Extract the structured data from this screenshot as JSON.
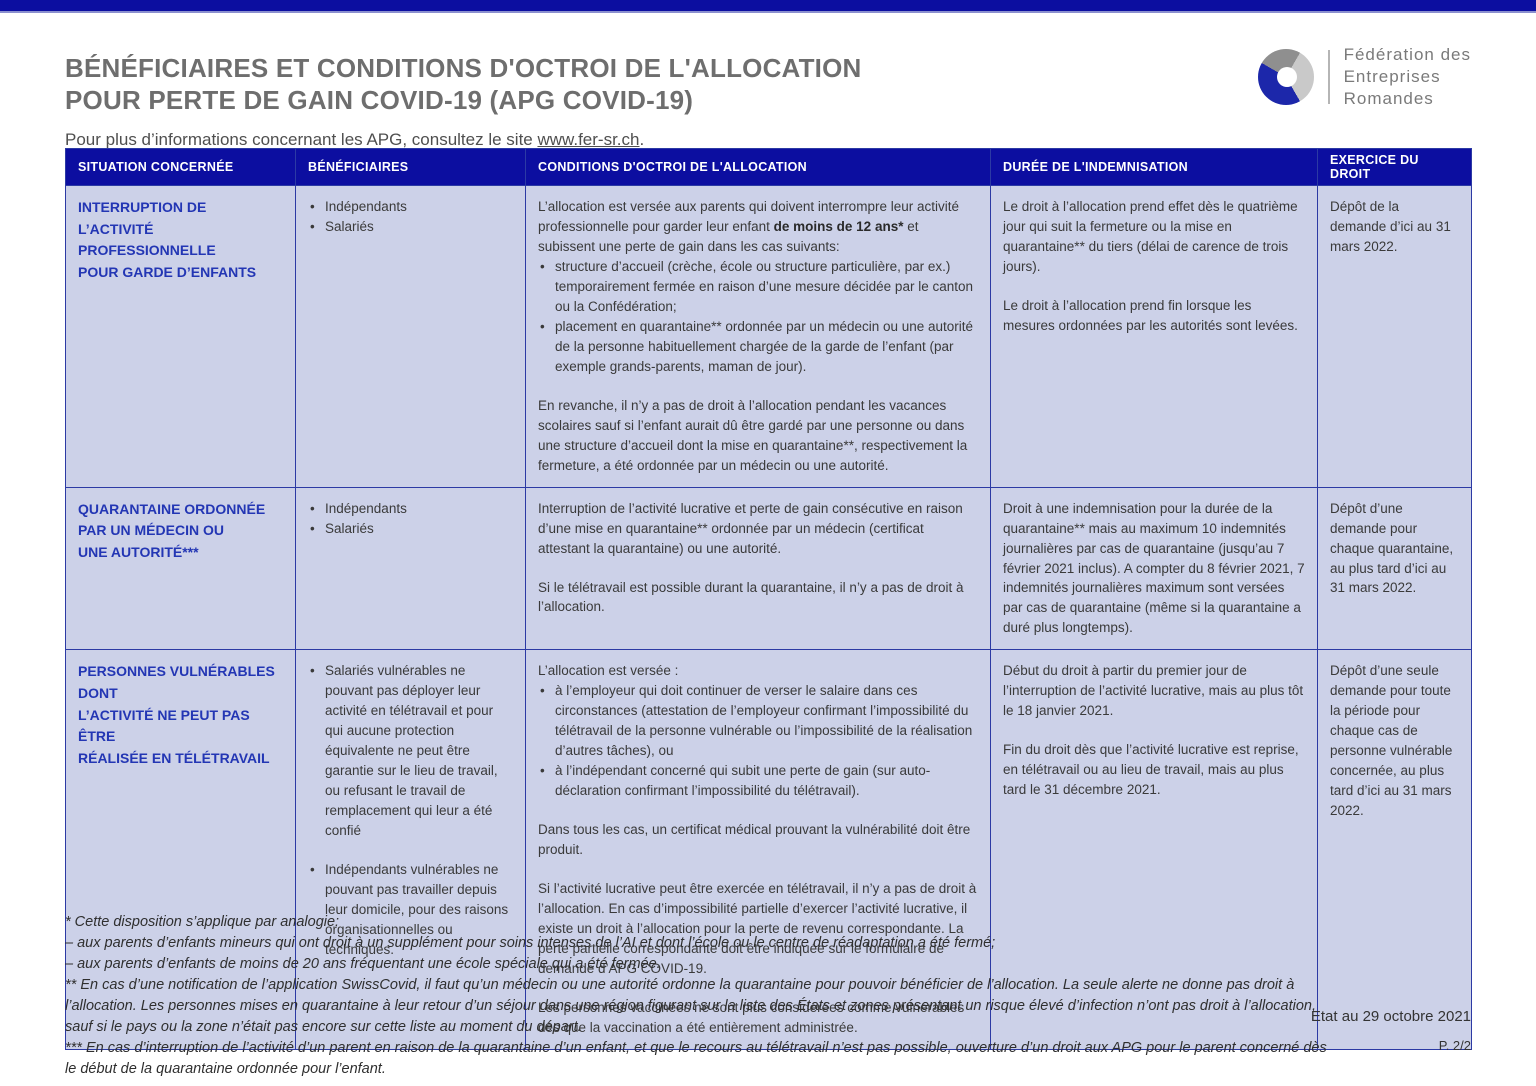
{
  "page": {
    "title_line1": "BÉNÉFICIAIRES ET CONDITIONS D'OCTROI DE L'ALLOCATION",
    "title_line2": "POUR PERTE DE GAIN COVID-19 (APG COVID-19)",
    "subtitle_prefix": "Pour plus d’informations concernant les APG, consultez le site ",
    "subtitle_link": "www.fer-sr.ch",
    "subtitle_suffix": "."
  },
  "logo": {
    "org_line1": "Fédération des",
    "org_line2": "Entreprises",
    "org_line3": "Romandes"
  },
  "colors": {
    "brand_navy": "#0c0ea0",
    "cell_background": "#ccd1e8",
    "table_border": "#2c3aa4",
    "situation_blue": "#2336b4",
    "logo_blue": "#1c27aa"
  },
  "table": {
    "headers": [
      "SITUATION CONCERNÉE",
      "BÉNÉFICIAIRES",
      "CONDITIONS D'OCTROI DE L'ALLOCATION",
      "DURÉE DE L'INDEMNISATION",
      "EXERCICE DU DROIT"
    ],
    "rows": [
      {
        "situation": [
          "INTERRUPTION DE L’ACTIVITÉ",
          "PROFESSIONNELLE",
          "POUR GARDE D’ENFANTS"
        ],
        "beneficiaires": [
          {
            "type": "ul",
            "items": [
              "Indépendants",
              "Salariés"
            ]
          }
        ],
        "conditions": [
          {
            "type": "p",
            "spans": [
              {
                "t": "L’allocation est versée aux parents qui doivent interrompre leur activité professionnelle pour garder leur enfant "
              },
              {
                "t": "de moins de 12 ans*",
                "b": true
              },
              {
                "t": " et subissent une perte de gain dans les cas suivants:"
              }
            ]
          },
          {
            "type": "ul",
            "items": [
              "structure d’accueil (crèche, école ou structure particulière, par ex.) temporairement fermée en raison d’une mesure décidée par le canton ou la Confédération;",
              "placement en quarantaine** ordonnée par un médecin ou une autorité de la personne habituellement chargée de la garde de l’enfant (par exemple grands-parents, maman de jour)."
            ]
          },
          {
            "type": "p",
            "spans": [
              {
                "t": "En revanche, il n’y a pas de droit à l’allocation pendant les vacances scolaires sauf si l’enfant aurait dû être gardé par une personne ou dans une structure d’accueil dont la mise en quarantaine**, respectivement la fermeture, a été ordonnée par un médecin ou une autorité."
              }
            ]
          }
        ],
        "duree": [
          {
            "type": "p",
            "spans": [
              {
                "t": "Le droit à l’allocation prend effet dès le quatrième jour qui suit la fermeture ou la mise en quarantaine** du tiers (délai de carence de trois jours)."
              }
            ]
          },
          {
            "type": "p",
            "spans": [
              {
                "t": "Le droit à l’allocation prend fin lorsque les mesures ordonnées par les autorités sont levées."
              }
            ]
          }
        ],
        "exercice": [
          {
            "type": "p",
            "spans": [
              {
                "t": "Dépôt de la demande d’ici au 31 mars 2022."
              }
            ]
          }
        ]
      },
      {
        "situation": [
          "QUARANTAINE ORDONNÉE",
          "PAR UN MÉDECIN OU",
          "UNE AUTORITÉ***"
        ],
        "beneficiaires": [
          {
            "type": "ul",
            "items": [
              "Indépendants",
              "Salariés"
            ]
          }
        ],
        "conditions": [
          {
            "type": "p",
            "spans": [
              {
                "t": "Interruption de l’activité lucrative et perte de gain consécutive en raison d’une mise en quarantaine** ordonnée par un médecin (certificat attestant la quarantaine) ou une autorité."
              }
            ]
          },
          {
            "type": "p",
            "spans": [
              {
                "t": "Si le télétravail est possible durant la quarantaine, il n’y a pas de droit à l’allocation."
              }
            ]
          }
        ],
        "duree": [
          {
            "type": "p",
            "spans": [
              {
                "t": "Droit à une indemnisation pour la durée de la quarantaine** mais au maximum 10 indemnités journalières par cas de quarantaine (jusqu’au 7 février 2021 inclus). A compter du 8 février 2021, 7 indemnités journalières maximum sont versées par cas de quarantaine (même si la quarantaine a duré plus longtemps)."
              }
            ]
          }
        ],
        "exercice": [
          {
            "type": "p",
            "spans": [
              {
                "t": "Dépôt d’une demande pour chaque quarantaine, au plus tard d’ici au 31 mars 2022."
              }
            ]
          }
        ]
      },
      {
        "situation": [
          "PERSONNES VULNÉRABLES DONT",
          "L’ACTIVITÉ NE PEUT PAS ÊTRE",
          "RÉALISÉE EN TÉLÉTRAVAIL"
        ],
        "beneficiaires": [
          {
            "type": "ul",
            "spaced": true,
            "items": [
              "Salariés vulnérables ne pouvant pas déployer leur activité en télétravail et pour qui aucune protection équivalente ne peut être garantie sur le lieu de travail, ou refusant le travail de remplacement qui leur a été confié",
              "Indépendants vulnérables ne pouvant pas travailler depuis leur domicile, pour des raisons organisationnelles ou techniques."
            ]
          }
        ],
        "conditions": [
          {
            "type": "p",
            "spans": [
              {
                "t": "L’allocation est versée :"
              }
            ]
          },
          {
            "type": "ul",
            "items": [
              "à l’employeur qui doit continuer de verser le salaire dans ces circonstances (attestation de l’employeur confirmant l’impossibilité du télétravail de la personne vulnérable ou l’impossibilité de la réalisation d’autres tâches), ou",
              "à l’indépendant concerné qui subit une perte de gain (sur auto-déclaration confirmant l’impossibilité du télétravail)."
            ]
          },
          {
            "type": "p",
            "spans": [
              {
                "t": "Dans tous les cas, un certificat médical prouvant la vulnérabilité doit être produit."
              }
            ]
          },
          {
            "type": "p",
            "spans": [
              {
                "t": "Si l’activité lucrative peut être exercée en télétravail, il n’y a pas de droit à l’allocation. En cas d’impossibilité partielle d’exercer l’activité lucrative, il existe un droit à l’allocation pour la perte de revenu correspondante. La perte partielle correspondante doit être indiquée sur le formulaire de demande d’APG COVID-19."
              }
            ]
          },
          {
            "type": "p",
            "spans": [
              {
                "t": "Les personnes vaccinées ne sont plus considérées comme vulnérables dès que la vaccination a été entièrement administrée."
              }
            ]
          }
        ],
        "duree": [
          {
            "type": "p",
            "spans": [
              {
                "t": "Début du droit à partir du premier jour de l’interruption de l’activité lucrative, mais au plus tôt le 18 janvier 2021."
              }
            ]
          },
          {
            "type": "p",
            "spans": [
              {
                "t": "Fin du droit dès que l’activité lucrative est reprise, en télétravail ou au lieu de travail, mais au plus tard le 31 décembre 2021."
              }
            ]
          }
        ],
        "exercice": [
          {
            "type": "p",
            "spans": [
              {
                "t": "Dépôt d’une seule demande pour toute la période pour chaque cas de personne vulnérable concernée, au plus tard d’ici au 31 mars 2022."
              }
            ]
          }
        ]
      }
    ]
  },
  "footnotes": [
    "* Cette disposition s’applique par analogie:",
    "– aux parents d’enfants mineurs qui ont droit à un supplément pour soins intenses de l’AI et dont l’école ou le centre de réadaptation a été fermé;",
    "– aux parents d’enfants de moins de 20 ans fréquentant une école spéciale qui a été fermée.",
    "** En cas d’une notification de l’application SwissCovid, il faut qu’un médecin ou une autorité ordonne la quarantaine pour pouvoir bénéficier de l’allocation. La seule alerte ne donne pas droit à l’allocation. Les personnes mises en quarantaine à leur retour d’un séjour dans une région figurant sur la liste des États et zones présentant un risque élevé d’infection n’ont pas droit à l’allocation, sauf si le pays ou la zone n’était pas encore sur cette liste au moment du départ.",
    "*** En cas d’interruption de l’activité d’un parent en raison de la quarantaine d’un enfant, et que le recours au télétravail n’est pas possible, ouverture d’un droit aux APG pour le parent concerné dès le début de la quarantaine ordonnée pour l’enfant."
  ],
  "footer": {
    "date": "Etat au 29 octobre 2021",
    "page_number": "P. 2/2"
  }
}
